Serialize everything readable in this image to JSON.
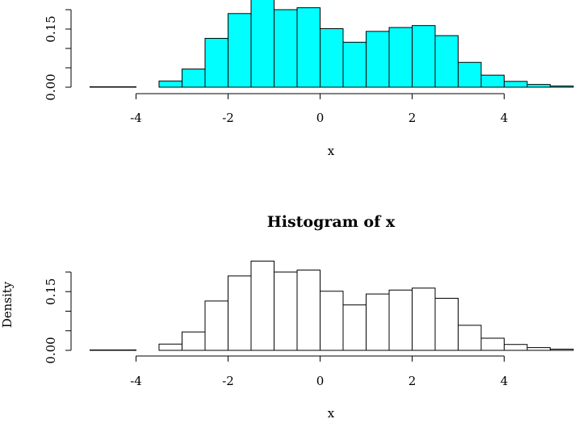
{
  "chart_data": [
    {
      "type": "bar",
      "title": "",
      "xlabel": "x",
      "ylabel": "",
      "xlim": [
        -5,
        5.5
      ],
      "ylim": [
        0,
        0.2
      ],
      "x_ticks": [
        "-4",
        "-2",
        "0",
        "2",
        "4"
      ],
      "y_ticks": [
        "0.00",
        "0.15"
      ],
      "bin_width": 0.5,
      "bin_starts": [
        -5.0,
        -4.5,
        -4.0,
        -3.5,
        -3.0,
        -2.5,
        -2.0,
        -1.5,
        -1.0,
        -0.5,
        0.0,
        0.5,
        1.0,
        1.5,
        2.0,
        2.5,
        3.0,
        3.5,
        4.0,
        4.5,
        5.0
      ],
      "values": [
        0.001,
        0.001,
        0.0,
        0.016,
        0.047,
        0.126,
        0.19,
        0.228,
        0.2,
        0.205,
        0.151,
        0.116,
        0.144,
        0.154,
        0.159,
        0.133,
        0.064,
        0.031,
        0.015,
        0.007,
        0.003
      ],
      "fill_color": "#00FFFF",
      "border_color": "#000000"
    },
    {
      "type": "bar",
      "title": "Histogram of x",
      "xlabel": "x",
      "ylabel": "Density",
      "xlim": [
        -5,
        5.5
      ],
      "ylim": [
        0,
        0.2
      ],
      "x_ticks": [
        "-4",
        "-2",
        "0",
        "2",
        "4"
      ],
      "y_ticks": [
        "0.00",
        "0.15"
      ],
      "bin_width": 0.5,
      "bin_starts": [
        -5.0,
        -4.5,
        -4.0,
        -3.5,
        -3.0,
        -2.5,
        -2.0,
        -1.5,
        -1.0,
        -0.5,
        0.0,
        0.5,
        1.0,
        1.5,
        2.0,
        2.5,
        3.0,
        3.5,
        4.0,
        4.5,
        5.0
      ],
      "values": [
        0.001,
        0.001,
        0.0,
        0.016,
        0.047,
        0.126,
        0.19,
        0.228,
        0.2,
        0.205,
        0.151,
        0.116,
        0.144,
        0.154,
        0.159,
        0.133,
        0.064,
        0.031,
        0.015,
        0.007,
        0.003
      ],
      "fill_color": "#FFFFFF",
      "border_color": "#000000"
    }
  ]
}
